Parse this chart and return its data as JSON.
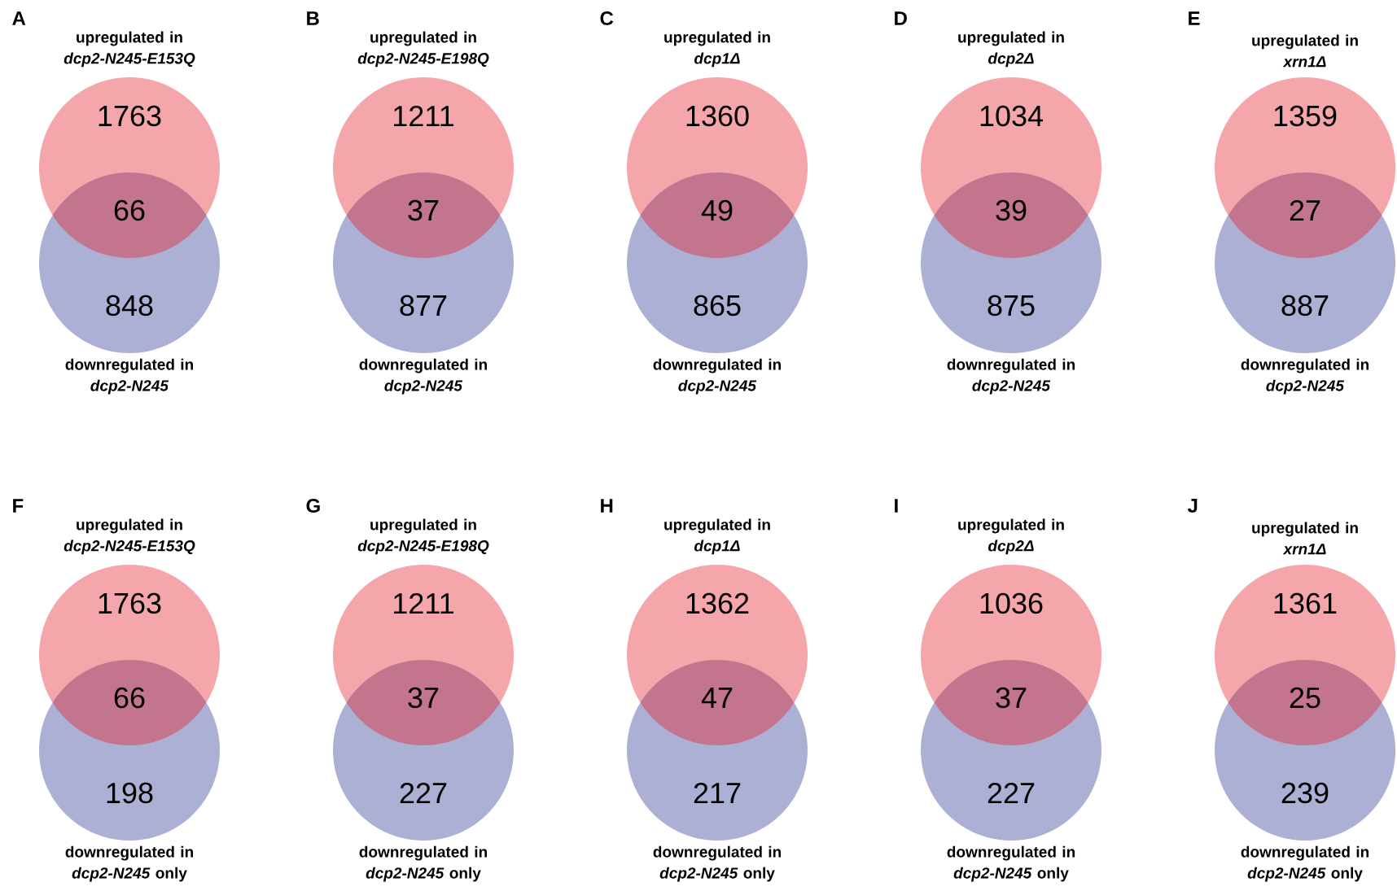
{
  "chart_data": [
    {
      "type": "other",
      "title": "A",
      "categories": [
        "upregulated in\n*dcp2-N245-E153Q*",
        null,
        "downregulated in\n*dcp2-N245*"
      ],
      "values": [
        1763,
        66,
        848
      ],
      "colors": [
        "#f4a6ab",
        "#c3758e",
        "#abb0d4"
      ],
      "data_labels": true
    },
    {
      "type": "other",
      "title": "B",
      "categories": [
        "upregulated in\n*dcp2-N245-E198Q*",
        null,
        "downregulated in\n*dcp2-N245*"
      ],
      "values": [
        1211,
        37,
        877
      ],
      "colors": [
        "#f4a6ab",
        "#c3758e",
        "#abb0d4"
      ],
      "data_labels": true
    },
    {
      "type": "other",
      "title": "C",
      "categories": [
        "upregulated in\n*dcp1Δ*",
        null,
        "downregulated in\n*dcp2-N245*"
      ],
      "values": [
        1360,
        49,
        865
      ],
      "colors": [
        "#f4a6ab",
        "#c3758e",
        "#abb0d4"
      ],
      "data_labels": true
    },
    {
      "type": "other",
      "title": "D",
      "categories": [
        "upregulated in\n*dcp2Δ*",
        null,
        "downregulated in\n*dcp2-N245*"
      ],
      "values": [
        1034,
        39,
        875
      ],
      "colors": [
        "#f4a6ab",
        "#c3758e",
        "#abb0d4"
      ],
      "data_labels": true
    },
    {
      "type": "other",
      "title": "E",
      "categories": [
        "upregulated in\n*xrn1Δ*",
        null,
        "downregulated in\n*dcp2-N245*"
      ],
      "values": [
        1359,
        27,
        887
      ],
      "colors": [
        "#f4a6ab",
        "#c3758e",
        "#abb0d4"
      ],
      "data_labels": true
    },
    {
      "type": "other",
      "title": "F",
      "categories": [
        "upregulated in\n*dcp2-N245-E153Q*",
        null,
        "downregulated in\n*dcp2-N245* only"
      ],
      "values": [
        1763,
        66,
        198
      ],
      "colors": [
        "#f4a6ab",
        "#c3758e",
        "#abb0d4"
      ],
      "data_labels": true
    },
    {
      "type": "other",
      "title": "G",
      "categories": [
        "upregulated in\n*dcp2-N245-E198Q*",
        null,
        "downregulated in\n*dcp2-N245* only"
      ],
      "values": [
        1211,
        37,
        227
      ],
      "colors": [
        "#f4a6ab",
        "#c3758e",
        "#abb0d4"
      ],
      "data_labels": true
    },
    {
      "type": "other",
      "title": "H",
      "categories": [
        "upregulated in\n*dcp1Δ*",
        null,
        "downregulated in\n*dcp2-N245* only"
      ],
      "values": [
        1362,
        47,
        217
      ],
      "colors": [
        "#f4a6ab",
        "#c3758e",
        "#abb0d4"
      ],
      "data_labels": true
    },
    {
      "type": "other",
      "title": "I",
      "categories": [
        "upregulated in\n*dcp2Δ*",
        null,
        "downregulated in\n*dcp2-N245* only"
      ],
      "values": [
        1036,
        37,
        227
      ],
      "colors": [
        "#f4a6ab",
        "#c3758e",
        "#abb0d4"
      ],
      "data_labels": true
    },
    {
      "type": "other",
      "title": "J",
      "categories": [
        "upregulated in\n*xrn1Δ*",
        null,
        "downregulated in\n*dcp2-N245* only"
      ],
      "values": [
        1361,
        25,
        239
      ],
      "colors": [
        "#f4a6ab",
        "#c3758e",
        "#abb0d4"
      ],
      "data_labels": true
    }
  ]
}
